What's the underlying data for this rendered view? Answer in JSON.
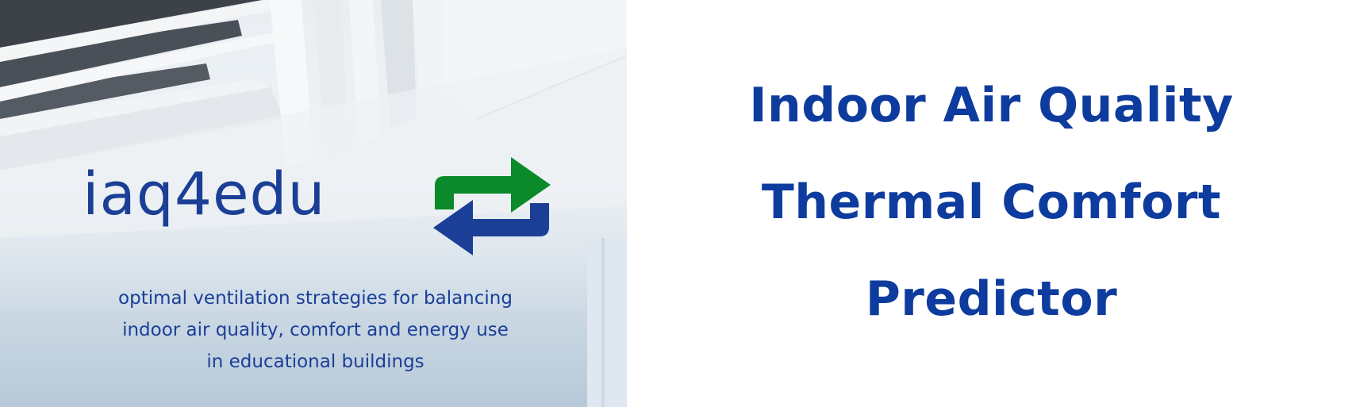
{
  "banner": {
    "photo": {
      "logo_text": "iaq4edu",
      "logo_icon": "refresh-arrows-icon",
      "logo_colors": {
        "text": "#1b3f97",
        "arrow_top": "#0a8a2a",
        "arrow_bottom": "#1b3f97"
      },
      "tagline_lines": [
        "optimal ventilation strategies for balancing",
        "indoor air quality, comfort and energy use",
        "in educational buildings"
      ]
    },
    "title_lines": [
      "Indoor Air Quality",
      "Thermal Comfort",
      "Predictor"
    ],
    "title_color": "#0e3c9e"
  }
}
